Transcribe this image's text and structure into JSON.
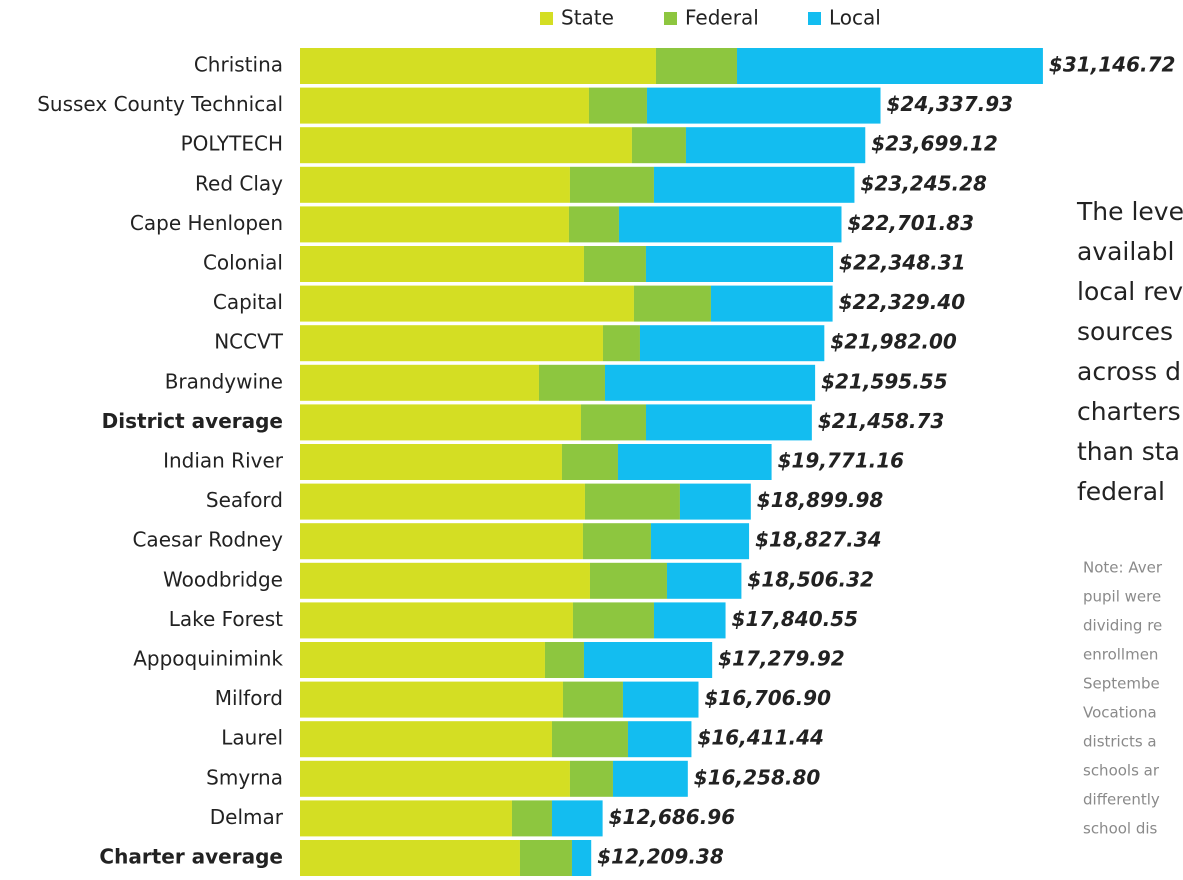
{
  "chart_data": {
    "type": "stacked-bar-horizontal",
    "categories": [
      "Christina",
      "Sussex County Technical",
      "POLYTECH",
      "Red Clay",
      "Cape Henlopen",
      "Colonial",
      "Capital",
      "NCCVT",
      "Brandywine",
      "District average",
      "Indian River",
      "Seaford",
      "Caesar Rodney",
      "Woodbridge",
      "Lake Forest",
      "Appoquinimink",
      "Milford",
      "Laurel",
      "Smyrna",
      "Delmar",
      "Charter average"
    ],
    "highlight_indices": [
      9,
      20
    ],
    "series": [
      {
        "name": "State",
        "color": "#d4de23",
        "values": [
          14924,
          12115,
          13917,
          11318,
          11276,
          11905,
          14001,
          12702,
          10019,
          11780,
          10983,
          11947,
          11863,
          12157,
          11444,
          10270,
          11025,
          10564,
          11318,
          8887,
          9222
        ]
      },
      {
        "name": "Federal",
        "color": "#8dc63f",
        "values": [
          3396,
          2431,
          2264,
          3521,
          2096,
          2599,
          3228,
          1551,
          2767,
          2725,
          2348,
          3982,
          2851,
          3228,
          3396,
          1635,
          2515,
          3186,
          1803,
          1677,
          2180
        ]
      },
      {
        "name": "Local",
        "color": "#13bdf0",
        "values": [
          12827,
          9792,
          7518,
          8406,
          9330,
          7844,
          5100,
          7729,
          8810,
          6954,
          6440,
          2971,
          4113,
          3121,
          3001,
          5375,
          3167,
          2661,
          3138,
          2123,
          807
        ]
      }
    ],
    "totals": [
      31146.72,
      24337.93,
      23699.12,
      23245.28,
      22701.83,
      22348.31,
      22329.4,
      21982.0,
      21595.55,
      21458.73,
      19771.16,
      18899.98,
      18827.34,
      18506.32,
      17840.55,
      17279.92,
      16706.9,
      16411.44,
      16258.8,
      12686.96,
      12209.38
    ],
    "total_labels": [
      "$31,146.72",
      "$24,337.93",
      "$23,699.12",
      "$23,245.28",
      "$22,701.83",
      "$22,348.31",
      "$22,329.40",
      "$21,982.00",
      "$21,595.55",
      "$21,458.73",
      "$19,771.16",
      "$18,899.98",
      "$18,827.34",
      "$18,506.32",
      "$17,840.55",
      "$17,279.92",
      "$16,706.90",
      "$16,411.44",
      "$16,258.80",
      "$12,686.96",
      "$12,209.38"
    ],
    "xlim": [
      0,
      31150
    ],
    "legend": "top",
    "annotation_lines": [
      "The leve",
      "availabl",
      "local rev",
      "sources",
      "across d",
      "charters",
      "than sta",
      "federal"
    ],
    "note_lines": [
      "Note: Aver",
      "pupil were",
      "dividing re",
      "enrollmen",
      "Septembe",
      "Vocationa",
      "districts a",
      "schools ar",
      "differently",
      "school dis"
    ]
  }
}
